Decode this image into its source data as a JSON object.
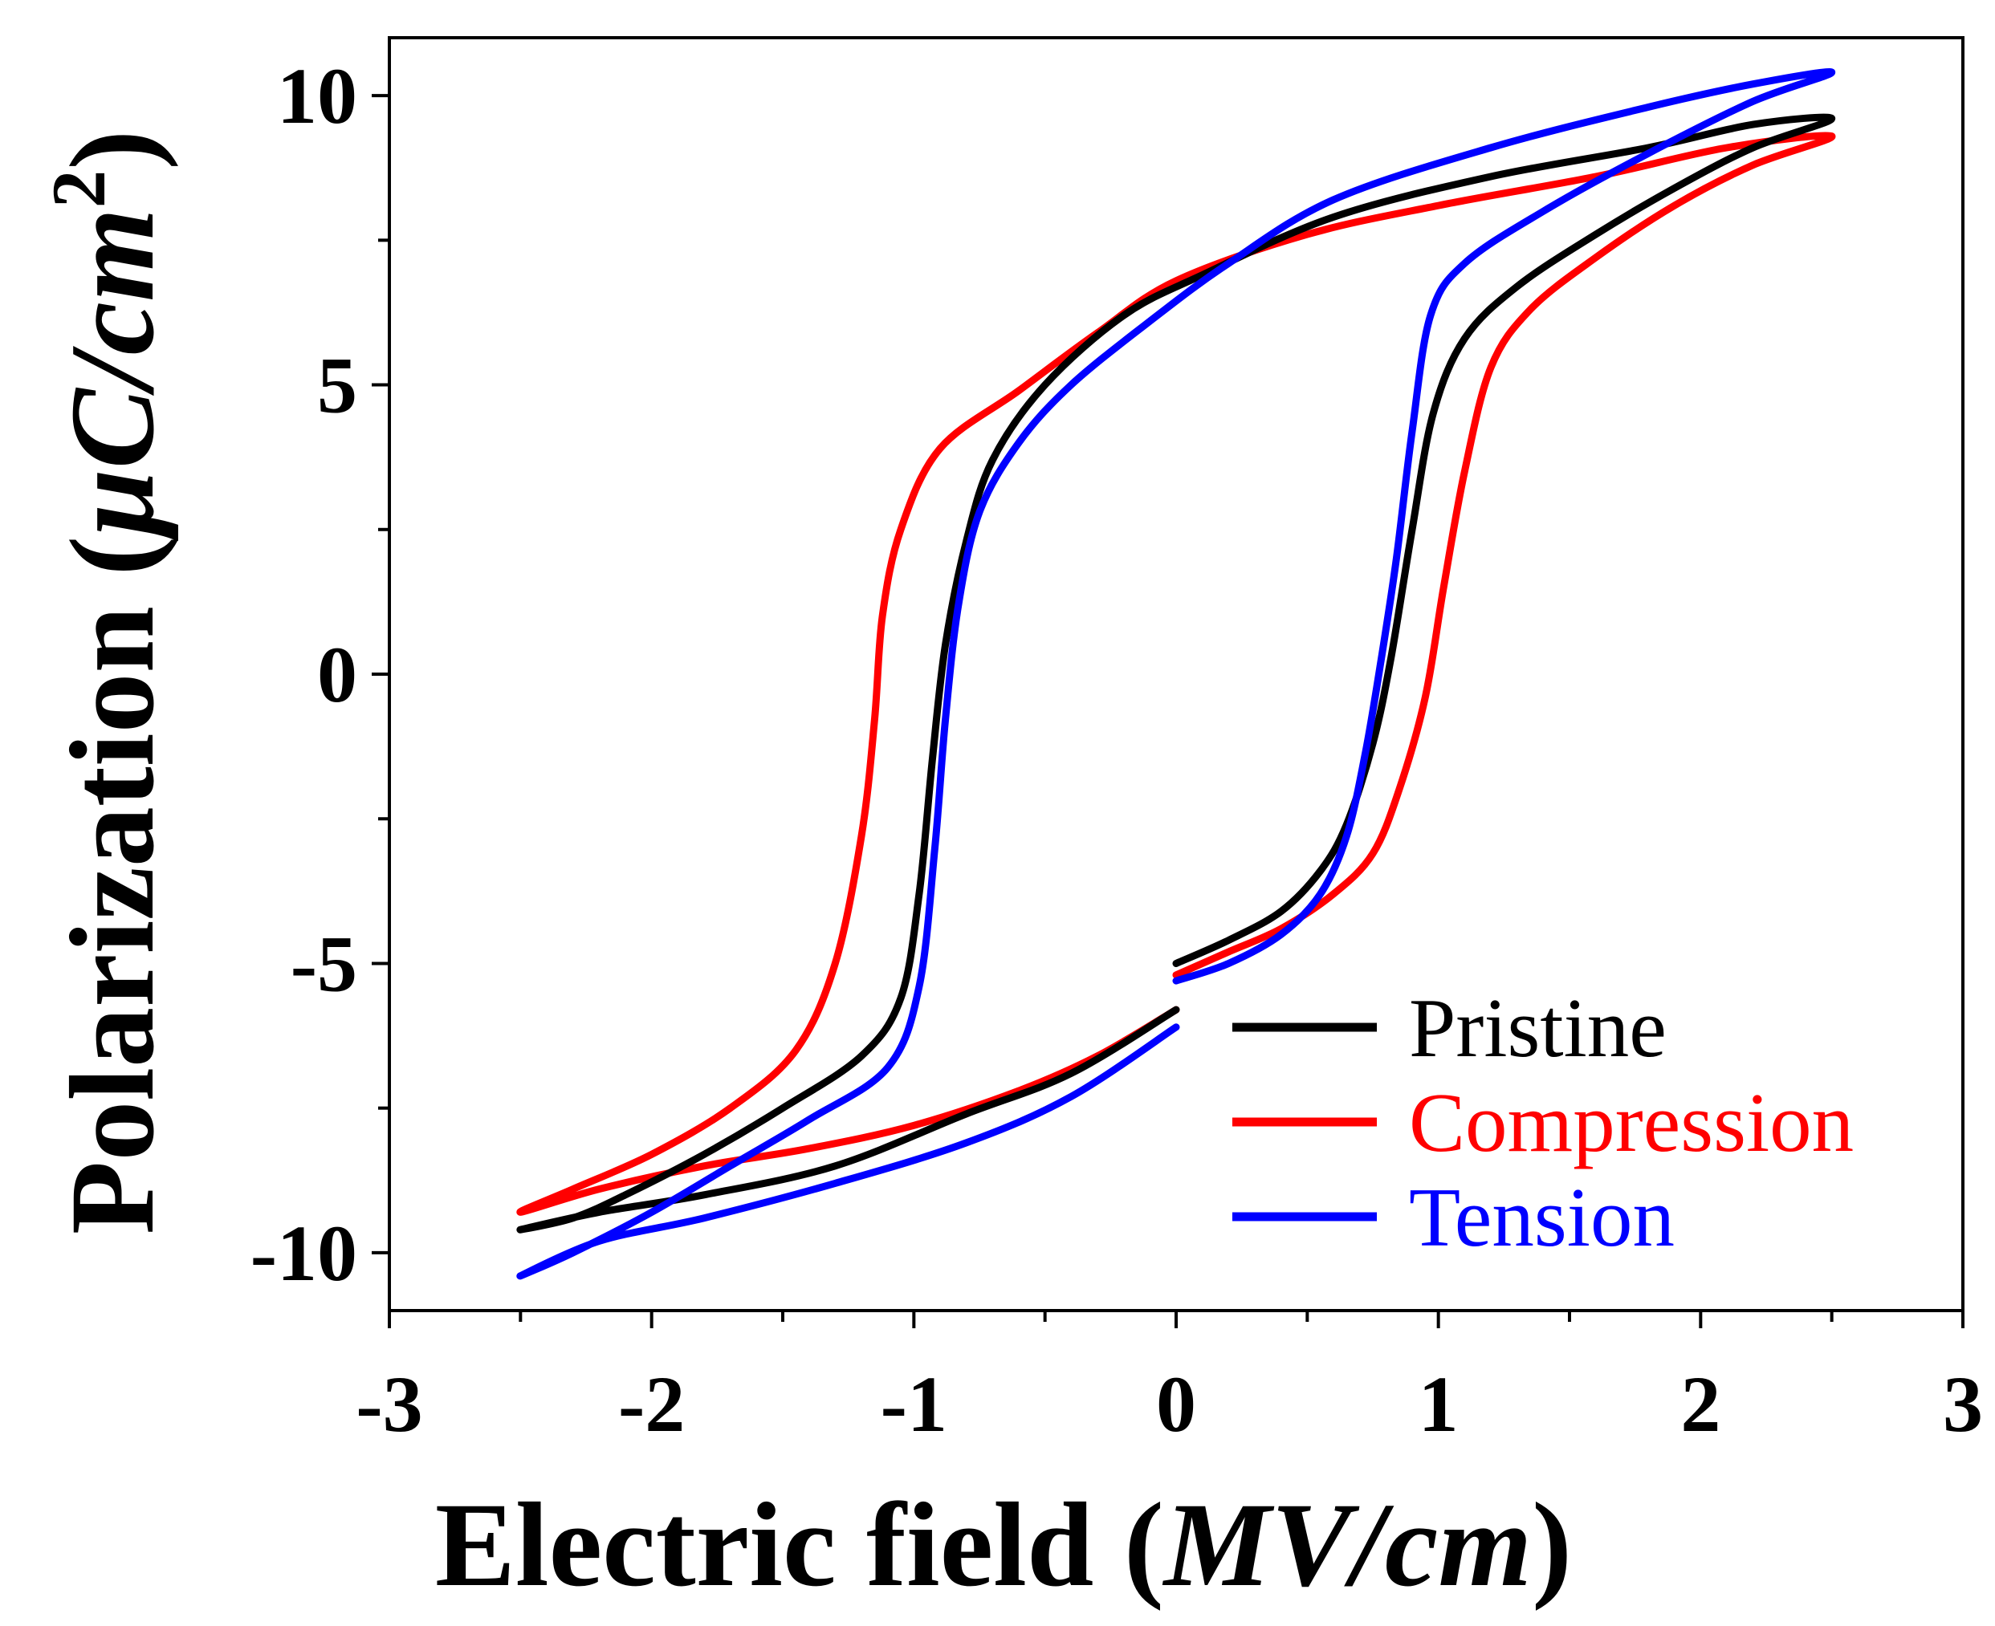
{
  "chart_data": {
    "type": "line",
    "xlabel": {
      "main": "Electric field (",
      "unit": "MV/cm",
      "close": ")"
    },
    "ylabel": {
      "main": "Polarization (",
      "unit_mu": "μ",
      "unit_c": "C/cm",
      "unit_sup": "2",
      "close": ")"
    },
    "xlim": [
      -3,
      3
    ],
    "ylim": [
      -11,
      11
    ],
    "xticks": [
      -3,
      -2,
      -1,
      0,
      1,
      2,
      3
    ],
    "xtick_labels": [
      "-3",
      "-2",
      "-1",
      "0",
      "1",
      "2",
      "3"
    ],
    "yticks": [
      -10,
      -5,
      0,
      5,
      10
    ],
    "ytick_labels": [
      "-10",
      "-5",
      "0",
      "5",
      "10"
    ],
    "grid": false,
    "legend_position": "bottom-right",
    "series": [
      {
        "name": "Pristine",
        "color": "#000000",
        "points": [
          [
            0,
            -5.0
          ],
          [
            0.2,
            -4.6
          ],
          [
            0.4,
            -4.1
          ],
          [
            0.55,
            -3.4
          ],
          [
            0.65,
            -2.6
          ],
          [
            0.75,
            -1.2
          ],
          [
            0.82,
            0.3
          ],
          [
            0.9,
            2.5
          ],
          [
            0.98,
            4.5
          ],
          [
            1.1,
            5.8
          ],
          [
            1.3,
            6.7
          ],
          [
            1.6,
            7.6
          ],
          [
            1.9,
            8.4
          ],
          [
            2.2,
            9.1
          ],
          [
            2.5,
            9.6
          ],
          [
            2.2,
            9.5
          ],
          [
            1.8,
            9.1
          ],
          [
            1.2,
            8.6
          ],
          [
            0.6,
            7.9
          ],
          [
            0.1,
            6.9
          ],
          [
            -0.2,
            6.2
          ],
          [
            -0.5,
            5.0
          ],
          [
            -0.7,
            3.7
          ],
          [
            -0.8,
            2.3
          ],
          [
            -0.88,
            0.5
          ],
          [
            -0.93,
            -1.5
          ],
          [
            -0.98,
            -3.8
          ],
          [
            -1.05,
            -5.6
          ],
          [
            -1.2,
            -6.6
          ],
          [
            -1.5,
            -7.5
          ],
          [
            -1.8,
            -8.3
          ],
          [
            -2.1,
            -9.0
          ],
          [
            -2.3,
            -9.4
          ],
          [
            -2.5,
            -9.6
          ],
          [
            -2.2,
            -9.3
          ],
          [
            -1.8,
            -9.0
          ],
          [
            -1.3,
            -8.5
          ],
          [
            -0.8,
            -7.6
          ],
          [
            -0.4,
            -6.9
          ],
          [
            0,
            -5.8
          ]
        ]
      },
      {
        "name": "Compression",
        "color": "#ff0000",
        "points": [
          [
            0,
            -5.2
          ],
          [
            0.2,
            -4.8
          ],
          [
            0.4,
            -4.4
          ],
          [
            0.6,
            -3.8
          ],
          [
            0.75,
            -3.1
          ],
          [
            0.85,
            -2.0
          ],
          [
            0.95,
            -0.4
          ],
          [
            1.02,
            1.5
          ],
          [
            1.1,
            3.5
          ],
          [
            1.2,
            5.3
          ],
          [
            1.35,
            6.3
          ],
          [
            1.6,
            7.2
          ],
          [
            1.9,
            8.1
          ],
          [
            2.2,
            8.8
          ],
          [
            2.5,
            9.3
          ],
          [
            2.1,
            9.1
          ],
          [
            1.6,
            8.6
          ],
          [
            1.0,
            8.1
          ],
          [
            0.5,
            7.6
          ],
          [
            0,
            6.8
          ],
          [
            -0.3,
            5.9
          ],
          [
            -0.6,
            4.9
          ],
          [
            -0.9,
            3.9
          ],
          [
            -1.05,
            2.5
          ],
          [
            -1.12,
            1.0
          ],
          [
            -1.15,
            -0.8
          ],
          [
            -1.2,
            -2.8
          ],
          [
            -1.3,
            -5.0
          ],
          [
            -1.45,
            -6.5
          ],
          [
            -1.7,
            -7.5
          ],
          [
            -2.0,
            -8.3
          ],
          [
            -2.3,
            -8.9
          ],
          [
            -2.5,
            -9.3
          ],
          [
            -2.2,
            -8.9
          ],
          [
            -1.8,
            -8.5
          ],
          [
            -1.4,
            -8.2
          ],
          [
            -1.0,
            -7.8
          ],
          [
            -0.6,
            -7.2
          ],
          [
            -0.3,
            -6.6
          ],
          [
            0,
            -5.8
          ]
        ]
      },
      {
        "name": "Tension",
        "color": "#0000ff",
        "points": [
          [
            0,
            -5.3
          ],
          [
            0.2,
            -5.0
          ],
          [
            0.4,
            -4.5
          ],
          [
            0.55,
            -3.8
          ],
          [
            0.65,
            -2.8
          ],
          [
            0.72,
            -1.4
          ],
          [
            0.78,
            0.2
          ],
          [
            0.84,
            2.0
          ],
          [
            0.9,
            4.2
          ],
          [
            0.97,
            6.2
          ],
          [
            1.1,
            7.1
          ],
          [
            1.4,
            8.0
          ],
          [
            1.8,
            9.0
          ],
          [
            2.2,
            9.9
          ],
          [
            2.5,
            10.4
          ],
          [
            2.2,
            10.2
          ],
          [
            1.8,
            9.8
          ],
          [
            1.2,
            9.1
          ],
          [
            0.6,
            8.2
          ],
          [
            0.2,
            7.1
          ],
          [
            -0.1,
            6.1
          ],
          [
            -0.4,
            5.0
          ],
          [
            -0.6,
            4.0
          ],
          [
            -0.75,
            2.8
          ],
          [
            -0.83,
            1.2
          ],
          [
            -0.88,
            -0.8
          ],
          [
            -0.92,
            -3.0
          ],
          [
            -0.98,
            -5.4
          ],
          [
            -1.1,
            -6.8
          ],
          [
            -1.4,
            -7.7
          ],
          [
            -1.7,
            -8.5
          ],
          [
            -2.0,
            -9.3
          ],
          [
            -2.3,
            -10.0
          ],
          [
            -2.5,
            -10.4
          ],
          [
            -2.2,
            -9.8
          ],
          [
            -1.8,
            -9.4
          ],
          [
            -1.3,
            -8.8
          ],
          [
            -0.8,
            -8.1
          ],
          [
            -0.4,
            -7.3
          ],
          [
            0,
            -6.1
          ]
        ]
      }
    ]
  }
}
